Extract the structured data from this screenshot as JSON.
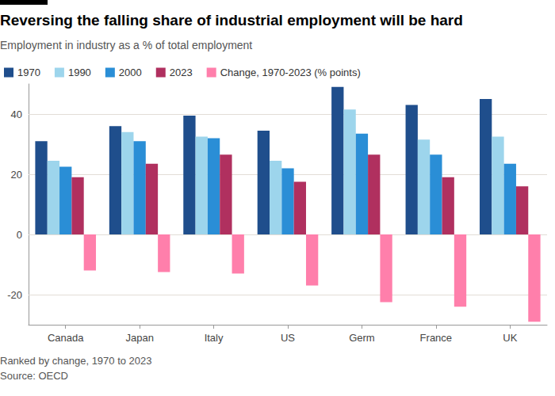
{
  "chart_data": {
    "type": "bar",
    "title": "Reversing the falling share of industrial employment will be hard",
    "subtitle": "Employment in industry as a % of total employment",
    "annotations": [
      "Ranked by change, 1970 to 2023",
      "Source: OECD"
    ],
    "categories": [
      "Canada",
      "Japan",
      "Italy",
      "US",
      "Germ",
      "France",
      "UK"
    ],
    "series": [
      {
        "name": "1970",
        "color": "#1f4e8c",
        "values": [
          31,
          36,
          39.5,
          34.5,
          49,
          43,
          45
        ]
      },
      {
        "name": "1990",
        "color": "#9dd5ec",
        "values": [
          24.5,
          34,
          32.5,
          24.5,
          41.5,
          31.5,
          32.5
        ]
      },
      {
        "name": "2000",
        "color": "#2a8ed6",
        "values": [
          22.5,
          31,
          32,
          22,
          33.5,
          26.5,
          23.5
        ]
      },
      {
        "name": "2023",
        "color": "#b0305f",
        "values": [
          19,
          23.5,
          26.5,
          17.5,
          26.5,
          19,
          16
        ]
      },
      {
        "name": "Change, 1970-2023 (% points)",
        "color": "#ff7fab",
        "values": [
          -12,
          -12.5,
          -13,
          -17,
          -22.5,
          -24,
          -29
        ]
      }
    ],
    "ylim": [
      -30,
      50
    ],
    "yticks": [
      -20,
      0,
      20,
      40
    ],
    "grid": true,
    "legend": "top-left"
  }
}
